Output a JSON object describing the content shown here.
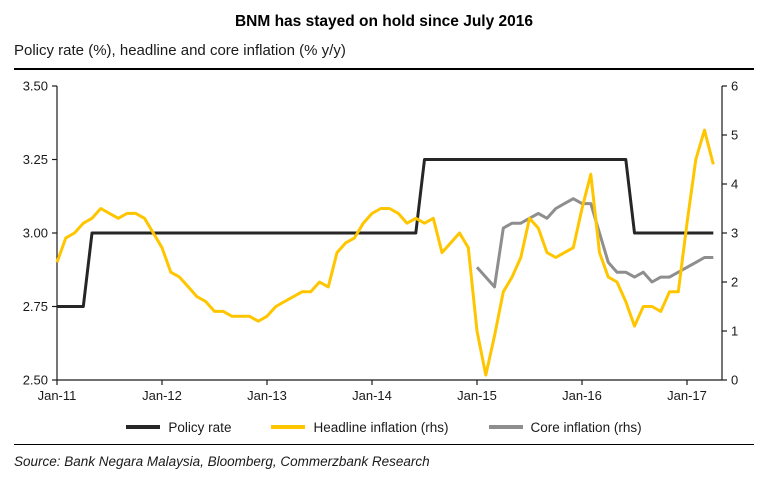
{
  "header": {
    "title": "BNM has stayed on hold since July 2016",
    "subtitle": "Policy rate (%), headline and core inflation (% y/y)"
  },
  "source": "Source: Bank Negara Malaysia, Bloomberg, Commerzbank Research",
  "chart_data": {
    "type": "line",
    "x_tick_labels": [
      "Jan-11",
      "Jan-12",
      "Jan-13",
      "Jan-14",
      "Jan-15",
      "Jan-16",
      "Jan-17"
    ],
    "x_tick_indices": [
      0,
      12,
      24,
      36,
      48,
      60,
      72
    ],
    "x_domain_max": 76,
    "left_axis": {
      "label_context": "Policy rate (%)",
      "min": 2.5,
      "max": 3.5,
      "tick_values": [
        3.5,
        3.25,
        3.0,
        2.75,
        2.5
      ],
      "tick_labels": [
        "3.50",
        "3.25",
        "3.00",
        "2.75",
        "2.50"
      ]
    },
    "right_axis": {
      "label_context": "Inflation (% y/y)",
      "min": 0,
      "max": 6,
      "tick_values": [
        6,
        5,
        4,
        3,
        2,
        1,
        0
      ],
      "tick_labels": [
        "6",
        "5",
        "4",
        "3",
        "2",
        "1",
        "0"
      ]
    },
    "series": [
      {
        "name": "Policy rate",
        "axis": "left",
        "color": "#262626",
        "values": [
          2.75,
          2.75,
          2.75,
          2.75,
          3.0,
          3.0,
          3.0,
          3.0,
          3.0,
          3.0,
          3.0,
          3.0,
          3.0,
          3.0,
          3.0,
          3.0,
          3.0,
          3.0,
          3.0,
          3.0,
          3.0,
          3.0,
          3.0,
          3.0,
          3.0,
          3.0,
          3.0,
          3.0,
          3.0,
          3.0,
          3.0,
          3.0,
          3.0,
          3.0,
          3.0,
          3.0,
          3.0,
          3.0,
          3.0,
          3.0,
          3.0,
          3.0,
          3.25,
          3.25,
          3.25,
          3.25,
          3.25,
          3.25,
          3.25,
          3.25,
          3.25,
          3.25,
          3.25,
          3.25,
          3.25,
          3.25,
          3.25,
          3.25,
          3.25,
          3.25,
          3.25,
          3.25,
          3.25,
          3.25,
          3.25,
          3.25,
          3.0,
          3.0,
          3.0,
          3.0,
          3.0,
          3.0,
          3.0,
          3.0,
          3.0,
          3.0
        ]
      },
      {
        "name": "Headline inflation (rhs)",
        "axis": "right",
        "color": "#FFC600",
        "values": [
          2.4,
          2.9,
          3.0,
          3.2,
          3.3,
          3.5,
          3.4,
          3.3,
          3.4,
          3.4,
          3.3,
          3.0,
          2.7,
          2.2,
          2.1,
          1.9,
          1.7,
          1.6,
          1.4,
          1.4,
          1.3,
          1.3,
          1.3,
          1.2,
          1.3,
          1.5,
          1.6,
          1.7,
          1.8,
          1.8,
          2.0,
          1.9,
          2.6,
          2.8,
          2.9,
          3.2,
          3.4,
          3.5,
          3.5,
          3.4,
          3.2,
          3.3,
          3.2,
          3.3,
          2.6,
          2.8,
          3.0,
          2.7,
          1.0,
          0.1,
          0.9,
          1.8,
          2.1,
          2.5,
          3.3,
          3.1,
          2.6,
          2.5,
          2.6,
          2.7,
          3.5,
          4.2,
          2.6,
          2.1,
          2.0,
          1.6,
          1.1,
          1.5,
          1.5,
          1.4,
          1.8,
          1.8,
          3.2,
          4.5,
          5.1,
          4.4
        ]
      },
      {
        "name": "Core inflation (rhs)",
        "axis": "right",
        "color": "#8E8E8E",
        "values": [
          null,
          null,
          null,
          null,
          null,
          null,
          null,
          null,
          null,
          null,
          null,
          null,
          null,
          null,
          null,
          null,
          null,
          null,
          null,
          null,
          null,
          null,
          null,
          null,
          null,
          null,
          null,
          null,
          null,
          null,
          null,
          null,
          null,
          null,
          null,
          null,
          null,
          null,
          null,
          null,
          null,
          null,
          null,
          null,
          null,
          null,
          null,
          null,
          2.3,
          2.1,
          1.9,
          3.1,
          3.2,
          3.2,
          3.3,
          3.4,
          3.3,
          3.5,
          3.6,
          3.7,
          3.6,
          3.6,
          3.0,
          2.4,
          2.2,
          2.2,
          2.1,
          2.2,
          2.0,
          2.1,
          2.1,
          2.2,
          2.3,
          2.4,
          2.5,
          2.5
        ]
      }
    ]
  }
}
